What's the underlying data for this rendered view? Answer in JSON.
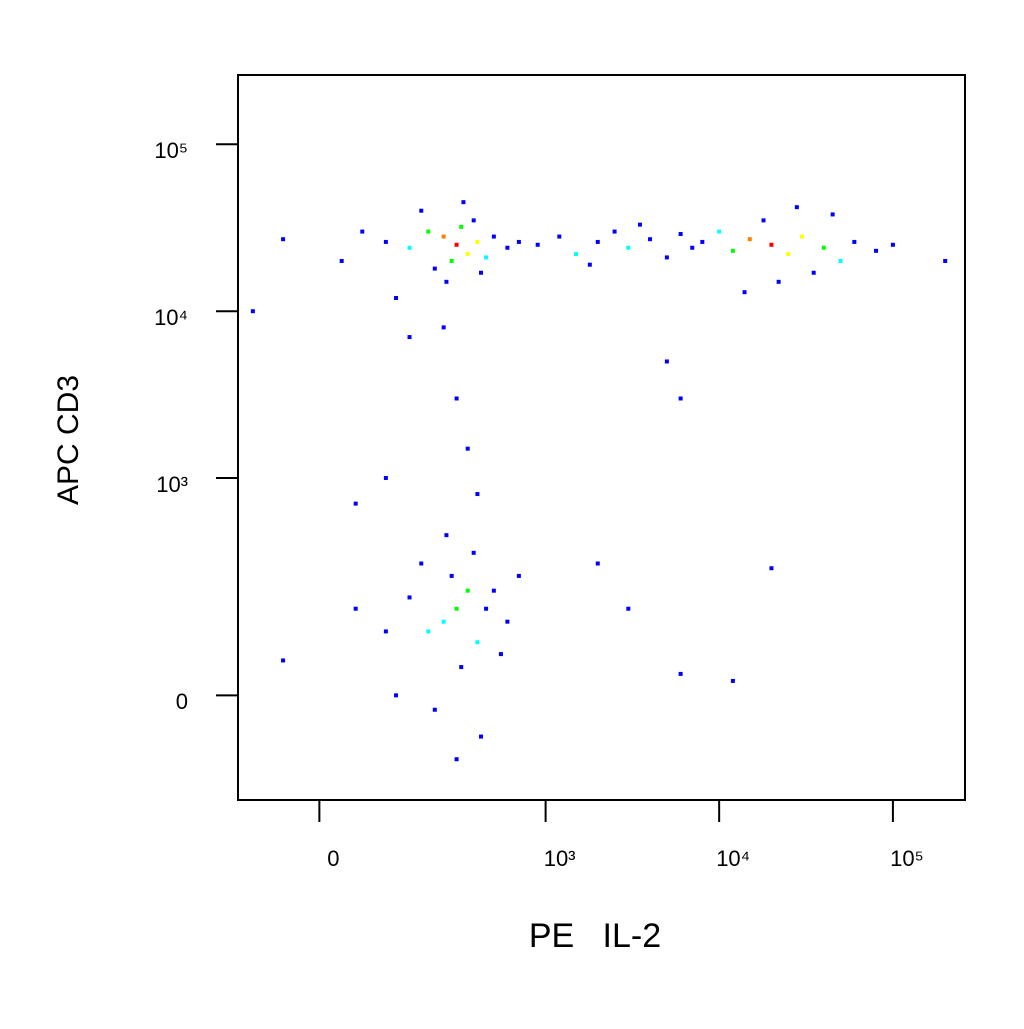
{
  "chart_data": {
    "type": "scatter",
    "x_label": "PE   IL-2",
    "y_label": "APC CD3",
    "xscale": "biexponential",
    "yscale": "biexponential",
    "xlim": [
      -130,
      260000
    ],
    "ylim": [
      -200,
      260000
    ],
    "xticks": [
      0,
      {
        "value": 1000,
        "label": "10³"
      },
      {
        "value": 10000,
        "label": "10⁴"
      },
      {
        "value": 100000,
        "label": "10⁵"
      }
    ],
    "yticks": [
      0,
      {
        "value": 1000,
        "label": "10³"
      },
      {
        "value": 10000,
        "label": "10⁴"
      },
      {
        "value": 100000,
        "label": "10⁵"
      }
    ],
    "x": [
      300,
      250,
      350,
      200,
      400,
      280,
      320,
      150,
      450,
      500,
      100,
      220,
      380,
      600,
      60,
      180,
      260,
      420,
      700,
      330,
      30,
      -50,
      120,
      250,
      150,
      900,
      1200,
      1500,
      2000,
      2500,
      3000,
      4000,
      5000,
      6000,
      1800,
      3500,
      7000,
      20000,
      15000,
      25000,
      30000,
      12000,
      40000,
      10000,
      50000,
      18000,
      35000,
      60000,
      80000,
      8000,
      22000,
      45000,
      100000,
      14000,
      28000,
      200000,
      5000,
      300,
      350,
      400,
      100,
      50,
      -100,
      6000,
      300,
      250,
      350,
      200,
      400,
      280,
      150,
      450,
      320,
      220,
      500,
      100,
      380,
      260,
      180,
      600,
      50,
      -50,
      420,
      300,
      120,
      550,
      700,
      2000,
      20000,
      3000,
      12000,
      6000
    ],
    "y": [
      25000,
      28000,
      22000,
      30000,
      26000,
      20000,
      32000,
      24000,
      21000,
      28000,
      26000,
      18000,
      35000,
      24000,
      30000,
      40000,
      15000,
      17000,
      26000,
      45000,
      20000,
      27000,
      12000,
      8000,
      7000,
      25000,
      28000,
      22000,
      26000,
      30000,
      24000,
      27000,
      21000,
      29000,
      19000,
      33000,
      24000,
      25000,
      27000,
      22000,
      28000,
      23000,
      24000,
      30000,
      20000,
      35000,
      17000,
      26000,
      23000,
      26000,
      15000,
      38000,
      25000,
      13000,
      42000,
      20000,
      5000,
      3000,
      1500,
      800,
      1000,
      700,
      10000,
      3000,
      150,
      120,
      200,
      100,
      80,
      250,
      180,
      150,
      40,
      -20,
      200,
      100,
      350,
      450,
      300,
      120,
      150,
      50,
      -60,
      -100,
      0,
      60,
      250,
      300,
      280,
      150,
      20,
      30
    ],
    "colors": [
      "#ff0000",
      "#ff8000",
      "#ffff00",
      "#00ff00",
      "#ffff00",
      "#00ff00",
      "#00ff00",
      "#00ffff",
      "#00ffff",
      "#0000ff",
      "#0000ff",
      "#0000ff",
      "#0000ff",
      "#0000ff",
      "#0000ff",
      "#0000ff",
      "#0000ff",
      "#0000ff",
      "#0000ff",
      "#0000ff",
      "#0000ff",
      "#0000ff",
      "#0000ff",
      "#0000ff",
      "#0000ff",
      "#0000ff",
      "#0000ff",
      "#00ffff",
      "#0000ff",
      "#0000ff",
      "#00ffff",
      "#0000ff",
      "#0000ff",
      "#0000ff",
      "#0000ff",
      "#0000ff",
      "#0000ff",
      "#ff0000",
      "#ff8000",
      "#ffff00",
      "#ffff00",
      "#00ff00",
      "#00ff00",
      "#00ffff",
      "#00ffff",
      "#0000ff",
      "#0000ff",
      "#0000ff",
      "#0000ff",
      "#0000ff",
      "#0000ff",
      "#0000ff",
      "#0000ff",
      "#0000ff",
      "#0000ff",
      "#0000ff",
      "#0000ff",
      "#0000ff",
      "#0000ff",
      "#0000ff",
      "#0000ff",
      "#0000ff",
      "#0000ff",
      "#0000ff",
      "#00ff00",
      "#00ffff",
      "#00ff00",
      "#00ffff",
      "#00ffff",
      "#0000ff",
      "#0000ff",
      "#0000ff",
      "#0000ff",
      "#0000ff",
      "#0000ff",
      "#0000ff",
      "#0000ff",
      "#0000ff",
      "#0000ff",
      "#0000ff",
      "#0000ff",
      "#0000ff",
      "#0000ff",
      "#0000ff",
      "#0000ff",
      "#0000ff",
      "#0000ff",
      "#0000ff",
      "#0000ff",
      "#0000ff",
      "#0000ff",
      "#0000ff"
    ]
  }
}
